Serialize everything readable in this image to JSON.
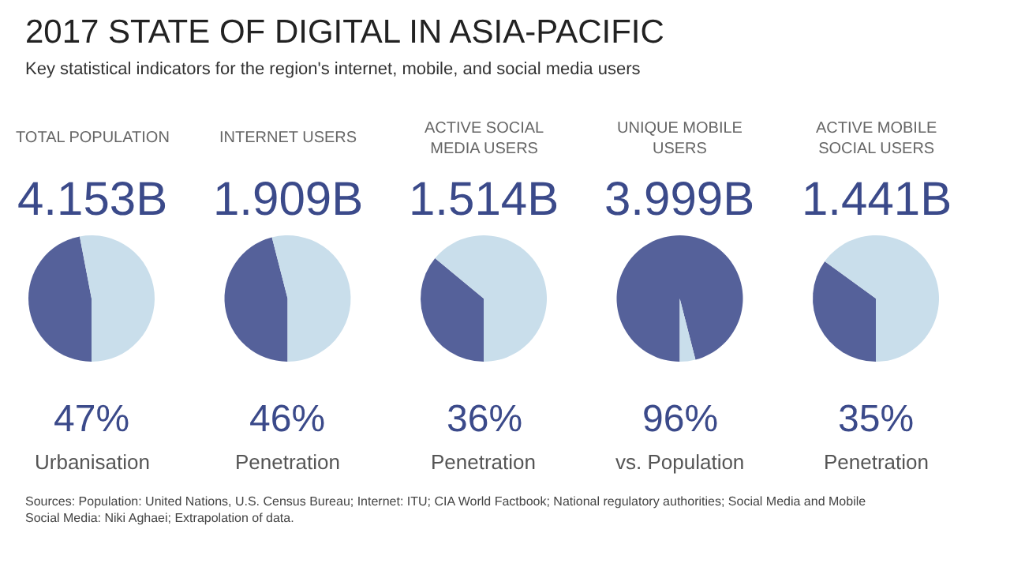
{
  "chart_data": [
    {
      "type": "other",
      "title": "2017 STATE OF DIGITAL IN ASIA-PACIFIC",
      "subtitle": "Key statistical indicators for the region's internet, mobile, and social media users"
    },
    {
      "type": "pie",
      "title": "TOTAL POPULATION",
      "annotations": [
        "4.153B",
        "Urbanisation"
      ],
      "categories": [
        null,
        null
      ],
      "values": [
        47,
        53
      ],
      "value_labels": [
        "47%",
        null
      ],
      "colors": [
        "#55619a",
        "#c9deeb"
      ]
    },
    {
      "type": "pie",
      "title": "INTERNET USERS",
      "annotations": [
        "1.909B",
        "Penetration"
      ],
      "categories": [
        null,
        null
      ],
      "values": [
        46,
        54
      ],
      "value_labels": [
        "46%",
        null
      ],
      "colors": [
        "#55619a",
        "#c9deeb"
      ]
    },
    {
      "type": "pie",
      "title": "ACTIVE SOCIAL MEDIA USERS",
      "annotations": [
        "1.514B",
        "Penetration"
      ],
      "categories": [
        null,
        null
      ],
      "values": [
        36,
        64
      ],
      "value_labels": [
        "36%",
        null
      ],
      "colors": [
        "#55619a",
        "#c9deeb"
      ]
    },
    {
      "type": "pie",
      "title": "UNIQUE MOBILE USERS",
      "annotations": [
        "3.999B",
        "vs. Population"
      ],
      "categories": [
        null,
        null
      ],
      "values": [
        96,
        4
      ],
      "value_labels": [
        "96%",
        null
      ],
      "colors": [
        "#55619a",
        "#c9deeb"
      ]
    },
    {
      "type": "pie",
      "title": "ACTIVE MOBILE SOCIAL USERS",
      "annotations": [
        "1.441B",
        "Penetration"
      ],
      "categories": [
        null,
        null
      ],
      "values": [
        35,
        65
      ],
      "value_labels": [
        "35%",
        null
      ],
      "colors": [
        "#55619a",
        "#c9deeb"
      ]
    },
    {
      "type": "other",
      "annotations": [
        "Sources: Population: United Nations, U.S. Census Bureau; Internet: ITU; CIA World Factbook; National regulatory authorities; Social Media and Mobile Social Media: Niki Aghaei; Extrapolation of data."
      ]
    }
  ]
}
